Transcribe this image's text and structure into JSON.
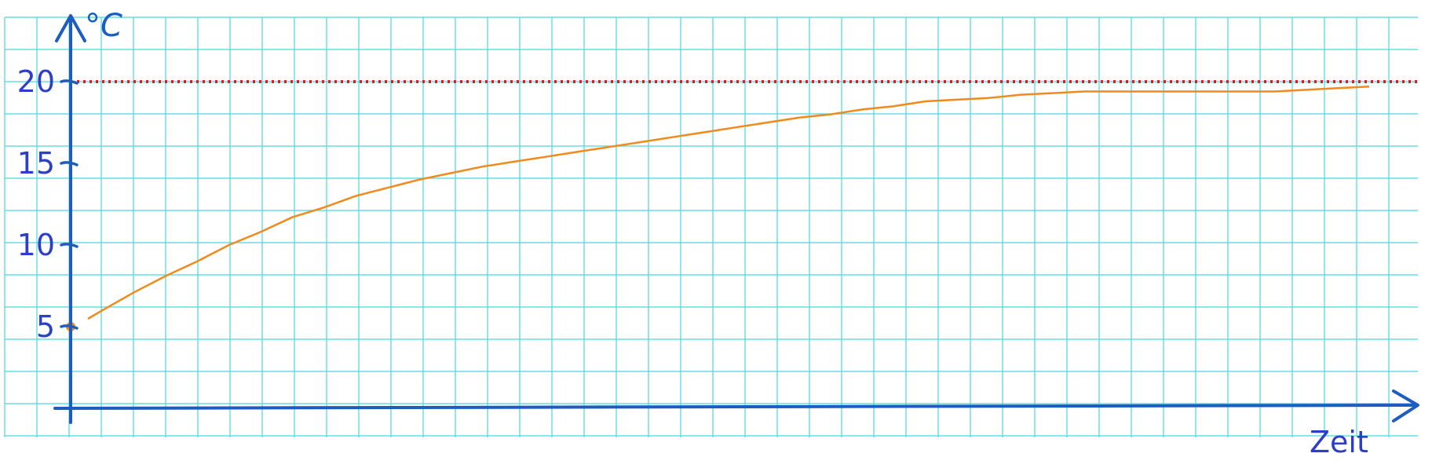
{
  "chart_data": {
    "type": "line",
    "title": "",
    "ylabel": "°C",
    "xlabel": "Zeit",
    "ylim": [
      0,
      20
    ],
    "y_ticks": [
      "5",
      "10",
      "15",
      "20"
    ],
    "grid": true,
    "reference_line": {
      "y": 20
    },
    "series": [
      {
        "x": [
          0,
          1,
          2,
          3,
          4,
          5,
          6,
          7,
          8,
          9,
          10,
          11,
          12,
          13,
          14,
          15,
          16,
          17,
          18,
          19,
          20,
          21,
          22,
          23,
          24,
          25,
          26,
          27,
          28,
          29,
          30,
          31,
          32,
          33,
          34,
          35,
          36,
          37,
          38,
          39,
          40,
          41
        ],
        "y": [
          5.0,
          6.0,
          7.1,
          8.1,
          9.0,
          10.0,
          10.8,
          11.7,
          12.3,
          13.0,
          13.5,
          14.0,
          14.4,
          14.8,
          15.1,
          15.4,
          15.7,
          16.0,
          16.3,
          16.6,
          16.9,
          17.2,
          17.5,
          17.8,
          18.0,
          18.3,
          18.5,
          18.8,
          18.9,
          19.0,
          19.2,
          19.3,
          19.4,
          19.4,
          19.4,
          19.4,
          19.4,
          19.4,
          19.4,
          19.5,
          19.6,
          19.7
        ]
      }
    ],
    "colors": {
      "grid": "#48d8de",
      "axis": "#1e5cc0",
      "curve": "#f08a1d",
      "reference": "#e02020",
      "labels": "#2b3fc8"
    }
  }
}
